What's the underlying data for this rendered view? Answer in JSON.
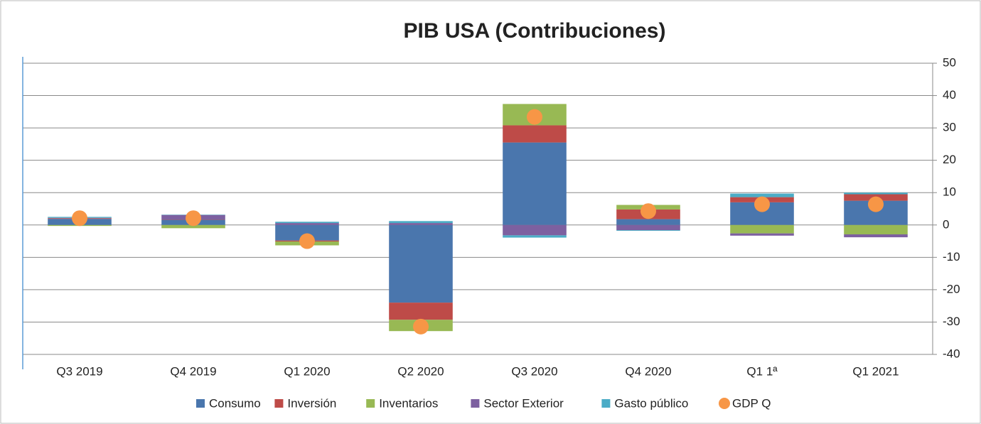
{
  "chart_data": {
    "type": "bar",
    "stacked": true,
    "title": "PIB USA (Contribuciones)",
    "categories": [
      "Q3 2019",
      "Q4 2019",
      "Q1 2020",
      "Q2 2020",
      "Q3 2020",
      "Q4 2020",
      "Q1 1ª",
      "Q1 2021"
    ],
    "series": [
      {
        "name": "Consumo",
        "color": "#4a76ad",
        "values": [
          1.9,
          1.6,
          -4.8,
          -24.0,
          25.5,
          1.8,
          7.0,
          7.5
        ]
      },
      {
        "name": "Inversión",
        "color": "#be4b48",
        "values": [
          0.2,
          0.1,
          -0.3,
          -5.3,
          5.3,
          3.0,
          1.6,
          2.0
        ]
      },
      {
        "name": "Inventarios",
        "color": "#98b954",
        "values": [
          -0.3,
          -1.0,
          -1.2,
          -3.5,
          6.6,
          1.4,
          -2.6,
          -2.9
        ]
      },
      {
        "name": "Sector Exterior",
        "color": "#7d60a0",
        "values": [
          0.1,
          1.4,
          0.6,
          0.6,
          -3.2,
          -1.6,
          -0.7,
          -0.9
        ]
      },
      {
        "name": "Gasto público",
        "color": "#4bacc6",
        "values": [
          0.3,
          0.1,
          0.4,
          0.6,
          -0.7,
          -0.2,
          1.1,
          0.5
        ]
      },
      {
        "name": "GDP Q",
        "type": "scatter",
        "color": "#f79646",
        "values": [
          2.1,
          2.1,
          -5.0,
          -31.4,
          33.4,
          4.3,
          6.4,
          6.4
        ]
      }
    ],
    "ylim": [
      -40,
      50
    ],
    "yticks": [
      -40,
      -30,
      -20,
      -10,
      0,
      10,
      20,
      30,
      40,
      50
    ],
    "y_axis_side": "right",
    "grid": true,
    "legend": "bottom"
  }
}
